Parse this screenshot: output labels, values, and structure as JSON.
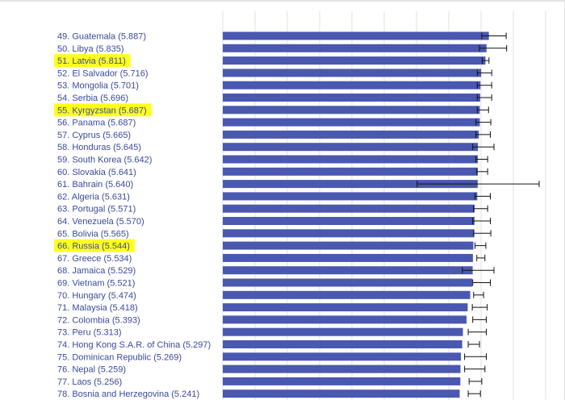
{
  "colors": {
    "bar": "#4a58b0",
    "label": "#3a4a9a",
    "highlight": "#ffff1f",
    "grid": "#e2e2e2",
    "error": "#111111"
  },
  "chart_data": {
    "type": "bar",
    "orientation": "horizontal",
    "x_range": [
      0,
      7.5
    ],
    "grid": true,
    "rows": [
      {
        "label": "49.  Guatemala (5.887)",
        "value": 5.887,
        "low": 5.73,
        "high": 6.27,
        "highlight": false
      },
      {
        "label": "50.  Libya (5.835)",
        "value": 5.835,
        "low": 5.68,
        "high": 6.28,
        "highlight": false
      },
      {
        "label": "51.  Latvia (5.811)",
        "value": 5.811,
        "low": 5.74,
        "high": 5.89,
        "highlight": true
      },
      {
        "label": "52.  El Salvador (5.716)",
        "value": 5.716,
        "low": 5.63,
        "high": 5.95,
        "highlight": false
      },
      {
        "label": "53.  Mongolia (5.701)",
        "value": 5.701,
        "low": 5.63,
        "high": 5.95,
        "highlight": false
      },
      {
        "label": "54.  Serbia (5.696)",
        "value": 5.696,
        "low": 5.63,
        "high": 5.95,
        "highlight": false
      },
      {
        "label": "55.  Kyrgyzstan (5.687)",
        "value": 5.687,
        "low": 5.63,
        "high": 5.88,
        "highlight": true
      },
      {
        "label": "56.  Panama (5.687)",
        "value": 5.687,
        "low": 5.6,
        "high": 5.93,
        "highlight": false
      },
      {
        "label": "57.  Cyprus (5.665)",
        "value": 5.665,
        "low": 5.6,
        "high": 5.92,
        "highlight": false
      },
      {
        "label": "58.  Honduras (5.645)",
        "value": 5.645,
        "low": 5.53,
        "high": 6.0,
        "highlight": false
      },
      {
        "label": "59.  South Korea (5.642)",
        "value": 5.642,
        "low": 5.6,
        "high": 5.86,
        "highlight": false
      },
      {
        "label": "60.  Slovakia (5.641)",
        "value": 5.641,
        "low": 5.62,
        "high": 5.86,
        "highlight": false
      },
      {
        "label": "61.  Bahrain (5.640)",
        "value": 5.64,
        "low": 4.3,
        "high": 7.0,
        "highlight": false
      },
      {
        "label": "62.  Algeria (5.631)",
        "value": 5.631,
        "low": 5.58,
        "high": 5.92,
        "highlight": false
      },
      {
        "label": "63.  Portugal (5.571)",
        "value": 5.571,
        "low": 5.55,
        "high": 5.86,
        "highlight": false
      },
      {
        "label": "64.  Venezuela (5.570)",
        "value": 5.57,
        "low": 5.53,
        "high": 5.92,
        "highlight": false
      },
      {
        "label": "65.  Bolivia (5.565)",
        "value": 5.565,
        "low": 5.55,
        "high": 5.93,
        "highlight": false
      },
      {
        "label": "66.  Russia (5.544)",
        "value": 5.544,
        "low": 5.58,
        "high": 5.82,
        "highlight": true
      },
      {
        "label": "67.  Greece (5.534)",
        "value": 5.534,
        "low": 5.62,
        "high": 5.8,
        "highlight": false
      },
      {
        "label": "68.  Jamaica (5.529)",
        "value": 5.529,
        "low": 5.3,
        "high": 6.0,
        "highlight": false
      },
      {
        "label": "69.  Vietnam (5.521)",
        "value": 5.521,
        "low": 5.53,
        "high": 5.92,
        "highlight": false
      },
      {
        "label": "70.  Hungary (5.474)",
        "value": 5.474,
        "low": 5.55,
        "high": 5.77,
        "highlight": false
      },
      {
        "label": "71.  Malaysia (5.418)",
        "value": 5.418,
        "low": 5.52,
        "high": 5.85,
        "highlight": false
      },
      {
        "label": "72.  Colombia (5.393)",
        "value": 5.393,
        "low": 5.53,
        "high": 5.83,
        "highlight": false
      },
      {
        "label": "73.  Peru (5.313)",
        "value": 5.313,
        "low": 5.43,
        "high": 5.83,
        "highlight": false
      },
      {
        "label": "74.  Hong Kong S.A.R. of China (5.297)",
        "value": 5.297,
        "low": 5.43,
        "high": 5.68,
        "highlight": false
      },
      {
        "label": "75.  Dominican Republic (5.269)",
        "value": 5.269,
        "low": 5.35,
        "high": 5.83,
        "highlight": false
      },
      {
        "label": "76.  Nepal (5.259)",
        "value": 5.259,
        "low": 5.35,
        "high": 5.8,
        "highlight": false
      },
      {
        "label": "77.  Laos (5.256)",
        "value": 5.256,
        "low": 5.45,
        "high": 5.73,
        "highlight": false
      },
      {
        "label": "78.  Bosnia and Herzegovina (5.241)",
        "value": 5.241,
        "low": 5.43,
        "high": 5.7,
        "highlight": false
      }
    ]
  }
}
